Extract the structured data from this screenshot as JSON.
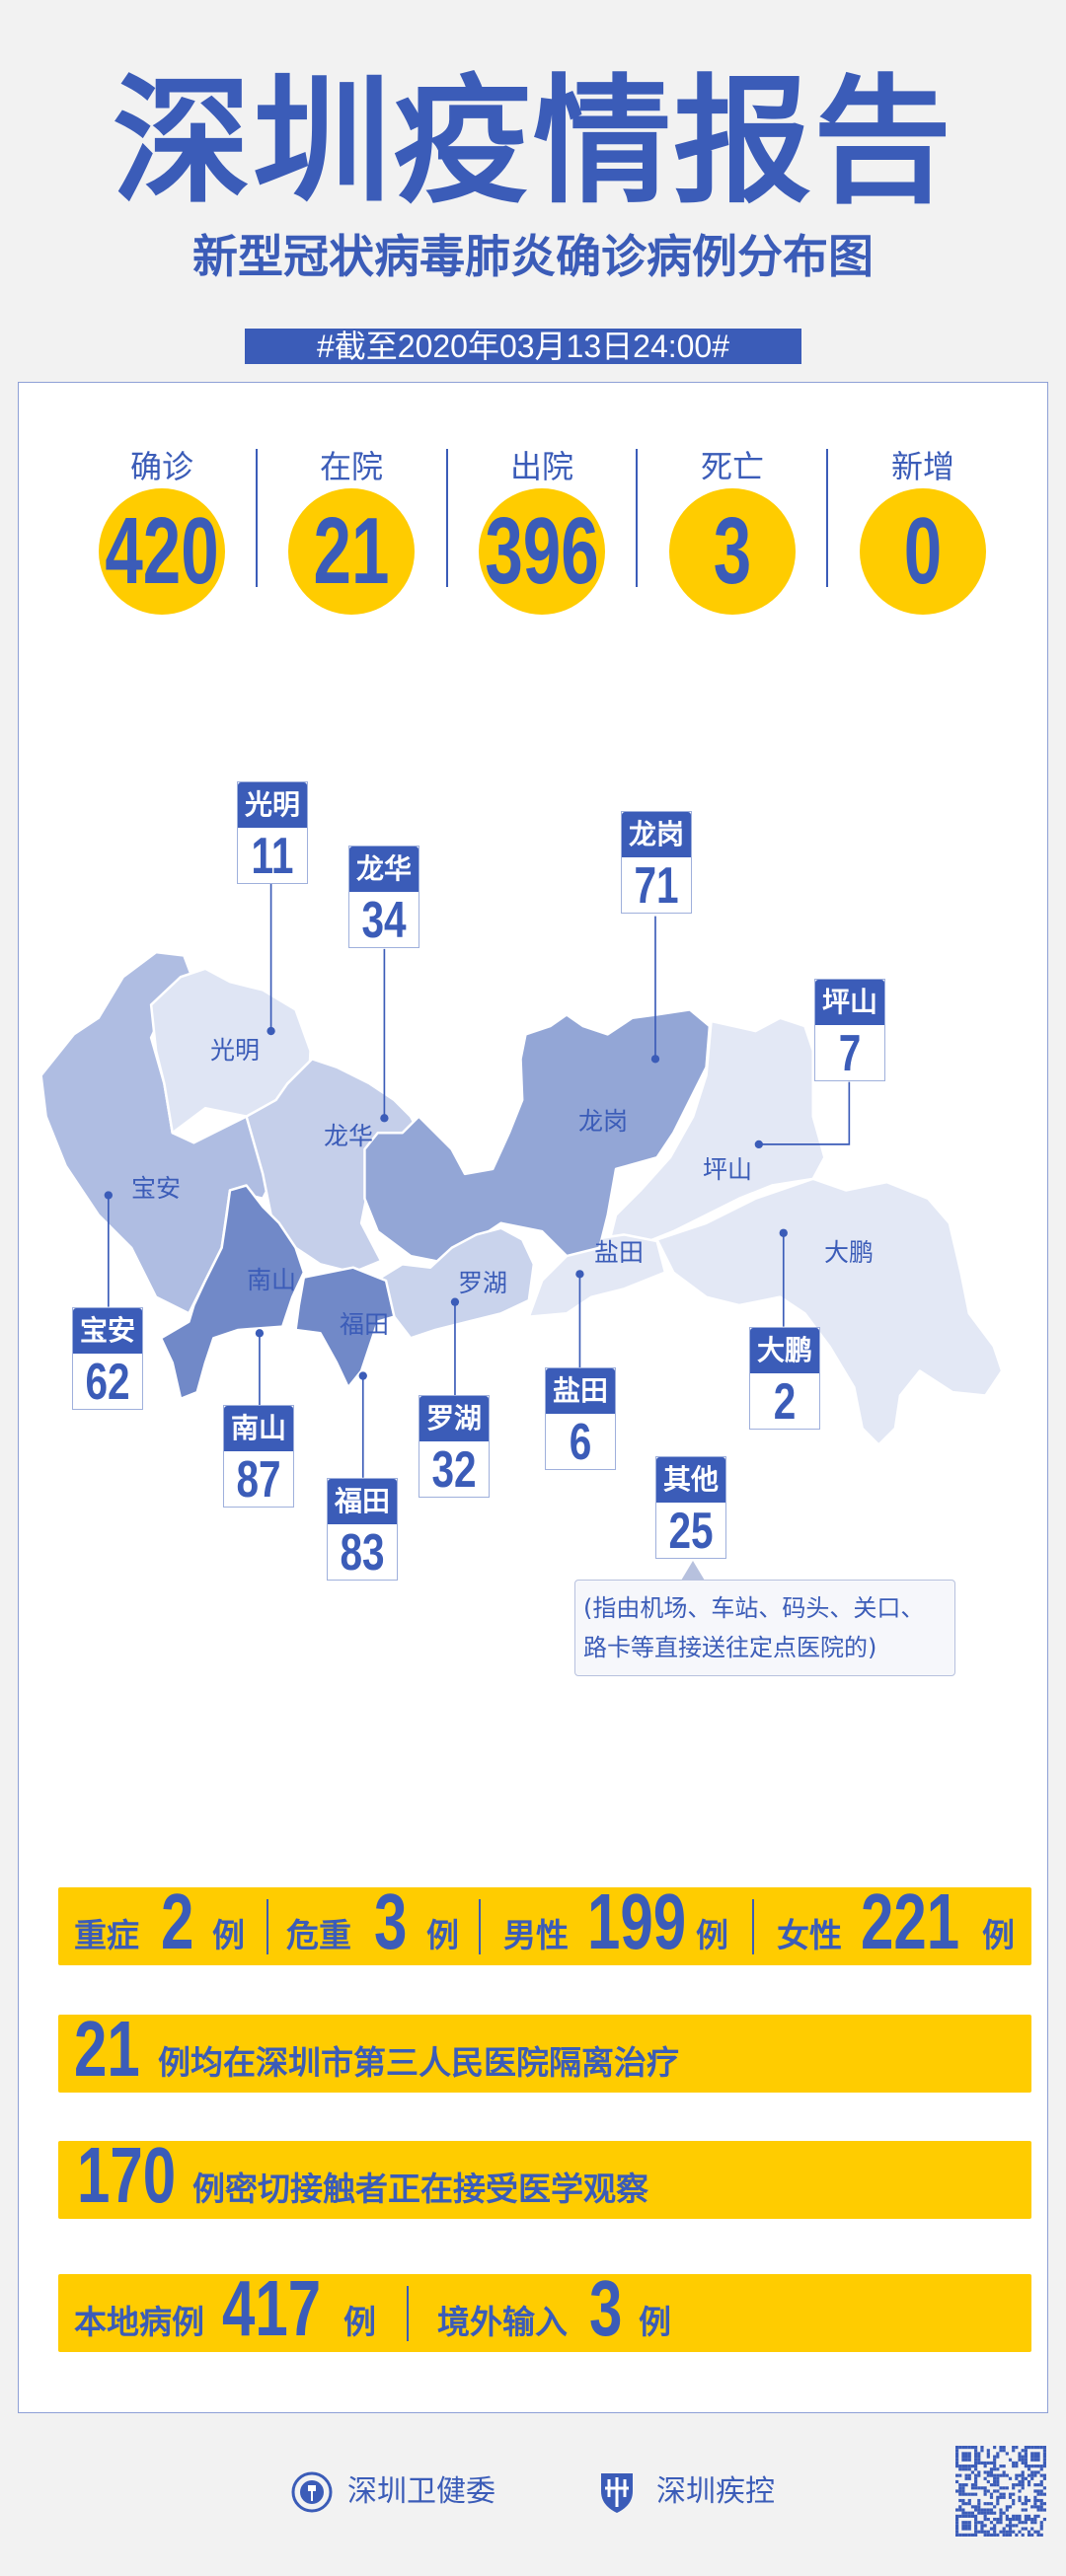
{
  "header": {
    "title": "深圳疫情报告",
    "subtitle": "新型冠状病毒肺炎确诊病例分布图",
    "date": "#截至2020年03月13日24:00#"
  },
  "stats": [
    {
      "label": "确诊",
      "value": "420"
    },
    {
      "label": "在院",
      "value": "21"
    },
    {
      "label": "出院",
      "value": "396"
    },
    {
      "label": "死亡",
      "value": "3"
    },
    {
      "label": "新增",
      "value": "0"
    }
  ],
  "districts": {
    "guangming": {
      "name": "光明",
      "count": "11"
    },
    "longhua": {
      "name": "龙华",
      "count": "34"
    },
    "longgang": {
      "name": "龙岗",
      "count": "71"
    },
    "pingshan": {
      "name": "坪山",
      "count": "7"
    },
    "baoan": {
      "name": "宝安",
      "count": "62"
    },
    "nanshan": {
      "name": "南山",
      "count": "87"
    },
    "futian": {
      "name": "福田",
      "count": "83"
    },
    "luohu": {
      "name": "罗湖",
      "count": "32"
    },
    "yantian": {
      "name": "盐田",
      "count": "6"
    },
    "dapeng": {
      "name": "大鹏",
      "count": "2"
    },
    "other": {
      "name": "其他",
      "count": "25",
      "note_line1": "(指由机场、车站、码头、关口、",
      "note_line2": "路卡等直接送往定点医院的)"
    }
  },
  "summary": {
    "row1": {
      "severe_label": "重症",
      "severe": "2",
      "critical_label": "危重",
      "critical": "3",
      "male_label": "男性",
      "male": "199",
      "female_label": "女性",
      "female": "221",
      "unit": "例"
    },
    "row2": {
      "value": "21",
      "text": "例均在深圳市第三人民医院隔离治疗"
    },
    "row3": {
      "value": "170",
      "text": "例密切接触者正在接受医学观察"
    },
    "row4": {
      "local_label": "本地病例",
      "local": "417",
      "imported_label": "境外输入",
      "imported": "3",
      "unit": "例"
    }
  },
  "footer": {
    "org1": "深圳卫健委",
    "org2": "深圳疾控"
  },
  "colors": {
    "brand_blue": "#3b5cb8",
    "accent_yellow": "#ffcc00",
    "background": "#f2f2f2"
  }
}
